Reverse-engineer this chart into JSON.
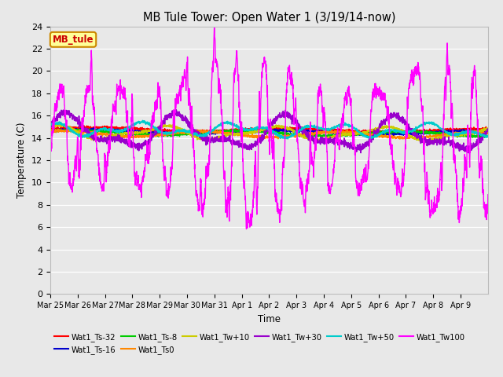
{
  "title": "MB Tule Tower: Open Water 1 (3/19/14-now)",
  "xlabel": "Time",
  "ylabel": "Temperature (C)",
  "ylim": [
    0,
    24
  ],
  "yticks": [
    0,
    2,
    4,
    6,
    8,
    10,
    12,
    14,
    16,
    18,
    20,
    22,
    24
  ],
  "bg_color": "#e8e8e8",
  "series": [
    {
      "label": "Wat1_Ts-32",
      "color": "#ff0000"
    },
    {
      "label": "Wat1_Ts-16",
      "color": "#0000cc"
    },
    {
      "label": "Wat1_Ts-8",
      "color": "#00cc00"
    },
    {
      "label": "Wat1_Ts0",
      "color": "#ff8800"
    },
    {
      "label": "Wat1_Tw+10",
      "color": "#cccc00"
    },
    {
      "label": "Wat1_Tw+30",
      "color": "#9900cc"
    },
    {
      "label": "Wat1_Tw+50",
      "color": "#00cccc"
    },
    {
      "label": "Wat1_Tw100",
      "color": "#ff00ff"
    }
  ],
  "legend_box": {
    "text": "MB_tule",
    "bg": "#ffff99",
    "border": "#cc8800"
  },
  "x_tick_labels": [
    "Mar 25",
    "Mar 26",
    "Mar 27",
    "Mar 28",
    "Mar 29",
    "Mar 30",
    "Mar 31",
    "Apr 1",
    "Apr 2",
    "Apr 3",
    "Apr 4",
    "Apr 5",
    "Apr 6",
    "Apr 7",
    "Apr 8",
    "Apr 9"
  ],
  "n_days": 16
}
